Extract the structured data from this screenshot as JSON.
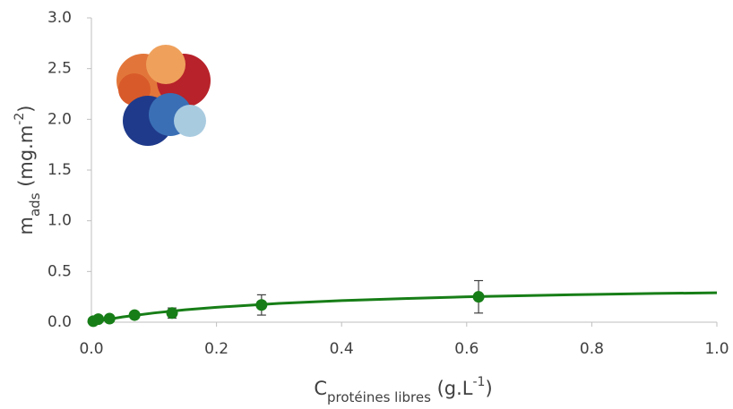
{
  "chart_data": {
    "type": "scatter",
    "x": [
      0.003,
      0.011,
      0.029,
      0.069,
      0.129,
      0.272,
      0.619
    ],
    "values": [
      0.01,
      0.03,
      0.035,
      0.07,
      0.09,
      0.17,
      0.25
    ],
    "errors": [
      0.01,
      0.01,
      0.01,
      0.03,
      0.05,
      0.1,
      0.16
    ],
    "fit_x": [
      0,
      0.05,
      0.1,
      0.15,
      0.2,
      0.3,
      0.4,
      0.5,
      0.6,
      0.7,
      0.8,
      0.9,
      1.0
    ],
    "fit_values": [
      0,
      0.052,
      0.091,
      0.122,
      0.147,
      0.185,
      0.213,
      0.233,
      0.25,
      0.263,
      0.274,
      0.283,
      0.29
    ],
    "color": "#177e17",
    "xlabel": [
      "C",
      "protéines libres",
      " (g.L",
      "-1",
      ")"
    ],
    "ylabel": [
      "m",
      "ads",
      " (mg.m",
      "-2",
      ")"
    ],
    "xlim": [
      0,
      1.0
    ],
    "xticks": [
      {
        "value": 0,
        "label": "0.0"
      },
      0.2,
      0.4,
      0.6,
      0.8,
      {
        "value": 1.0,
        "label": "1.0"
      }
    ],
    "ylim": [
      0,
      3.0
    ],
    "yticks": [
      {
        "value": 0,
        "label": "0.0"
      },
      0.5,
      {
        "value": 1.0,
        "label": "1.0"
      },
      1.5,
      {
        "value": 2.0,
        "label": "2.0"
      },
      2.5,
      {
        "value": 3.0,
        "label": "3.0"
      }
    ],
    "grid": false
  }
}
